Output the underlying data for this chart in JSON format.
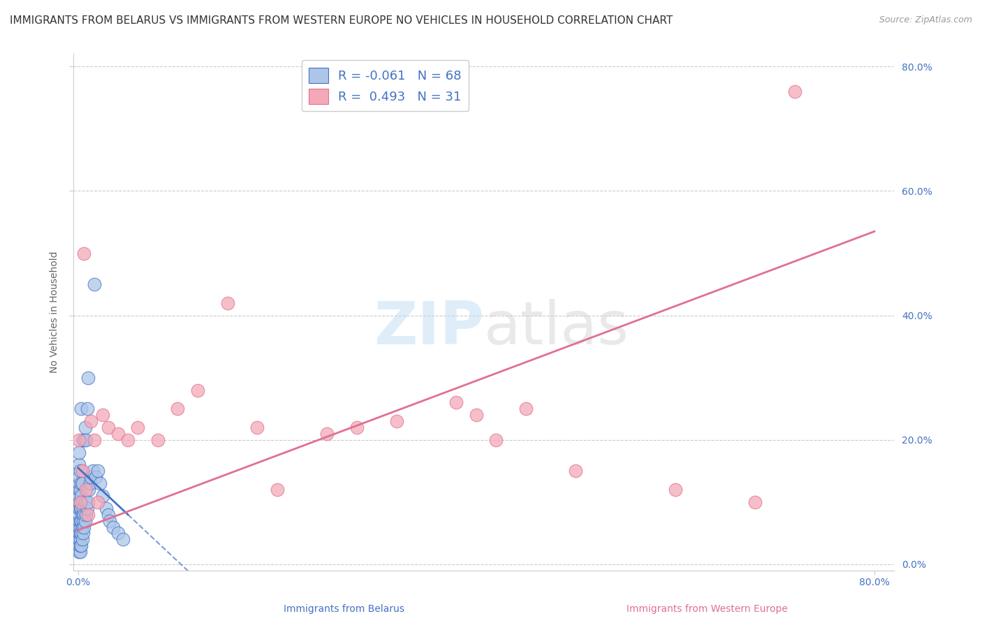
{
  "title": "IMMIGRANTS FROM BELARUS VS IMMIGRANTS FROM WESTERN EUROPE NO VEHICLES IN HOUSEHOLD CORRELATION CHART",
  "source": "Source: ZipAtlas.com",
  "xlabel_belarus": "Immigrants from Belarus",
  "xlabel_western": "Immigrants from Western Europe",
  "ylabel": "No Vehicles in Household",
  "watermark_zip": "ZIP",
  "watermark_atlas": "atlas",
  "belarus_R": -0.061,
  "belarus_N": 68,
  "western_R": 0.493,
  "western_N": 31,
  "xlim": [
    -0.005,
    0.82
  ],
  "ylim": [
    -0.01,
    0.82
  ],
  "x_ticks": [
    0.0,
    0.2,
    0.4,
    0.6,
    0.8
  ],
  "y_ticks": [
    0.0,
    0.2,
    0.4,
    0.6,
    0.8
  ],
  "x_tick_labels_left": [
    "0.0%"
  ],
  "x_tick_labels_right": [
    "80.0%"
  ],
  "y_tick_labels_right": [
    "0.0%",
    "20.0%",
    "40.0%",
    "60.0%",
    "80.0%"
  ],
  "color_belarus": "#adc6e8",
  "color_western": "#f4a8b8",
  "color_line_belarus": "#4472c4",
  "color_line_western": "#e07090",
  "color_tick": "#4472c4",
  "background_color": "#ffffff",
  "grid_color": "#cccccc",
  "title_fontsize": 11,
  "source_fontsize": 9,
  "axis_label_fontsize": 10,
  "tick_fontsize": 10,
  "bel_x": [
    0.001,
    0.001,
    0.001,
    0.001,
    0.001,
    0.001,
    0.001,
    0.001,
    0.001,
    0.001,
    0.001,
    0.001,
    0.001,
    0.001,
    0.001,
    0.002,
    0.002,
    0.002,
    0.002,
    0.002,
    0.002,
    0.002,
    0.002,
    0.002,
    0.002,
    0.003,
    0.003,
    0.003,
    0.003,
    0.003,
    0.003,
    0.003,
    0.004,
    0.004,
    0.004,
    0.004,
    0.004,
    0.005,
    0.005,
    0.005,
    0.005,
    0.006,
    0.006,
    0.006,
    0.007,
    0.007,
    0.007,
    0.008,
    0.008,
    0.009,
    0.009,
    0.01,
    0.01,
    0.011,
    0.012,
    0.013,
    0.015,
    0.016,
    0.018,
    0.02,
    0.022,
    0.025,
    0.028,
    0.03,
    0.032,
    0.035,
    0.04,
    0.045
  ],
  "bel_y": [
    0.02,
    0.03,
    0.04,
    0.05,
    0.06,
    0.07,
    0.08,
    0.09,
    0.1,
    0.11,
    0.12,
    0.13,
    0.14,
    0.16,
    0.18,
    0.02,
    0.03,
    0.04,
    0.05,
    0.06,
    0.07,
    0.09,
    0.1,
    0.12,
    0.15,
    0.03,
    0.05,
    0.07,
    0.09,
    0.11,
    0.13,
    0.25,
    0.04,
    0.06,
    0.08,
    0.1,
    0.13,
    0.05,
    0.07,
    0.09,
    0.2,
    0.06,
    0.08,
    0.2,
    0.07,
    0.1,
    0.22,
    0.08,
    0.2,
    0.09,
    0.25,
    0.1,
    0.3,
    0.12,
    0.13,
    0.14,
    0.15,
    0.45,
    0.14,
    0.15,
    0.13,
    0.11,
    0.09,
    0.08,
    0.07,
    0.06,
    0.05,
    0.04
  ],
  "wes_x": [
    0.001,
    0.002,
    0.004,
    0.006,
    0.008,
    0.01,
    0.013,
    0.016,
    0.02,
    0.025,
    0.03,
    0.04,
    0.05,
    0.06,
    0.08,
    0.1,
    0.12,
    0.15,
    0.18,
    0.2,
    0.25,
    0.28,
    0.32,
    0.38,
    0.4,
    0.42,
    0.45,
    0.5,
    0.6,
    0.68,
    0.72
  ],
  "wes_y": [
    0.2,
    0.1,
    0.15,
    0.5,
    0.12,
    0.08,
    0.23,
    0.2,
    0.1,
    0.24,
    0.22,
    0.21,
    0.2,
    0.22,
    0.2,
    0.25,
    0.28,
    0.42,
    0.22,
    0.12,
    0.21,
    0.22,
    0.23,
    0.26,
    0.24,
    0.2,
    0.25,
    0.15,
    0.12,
    0.1,
    0.76
  ]
}
